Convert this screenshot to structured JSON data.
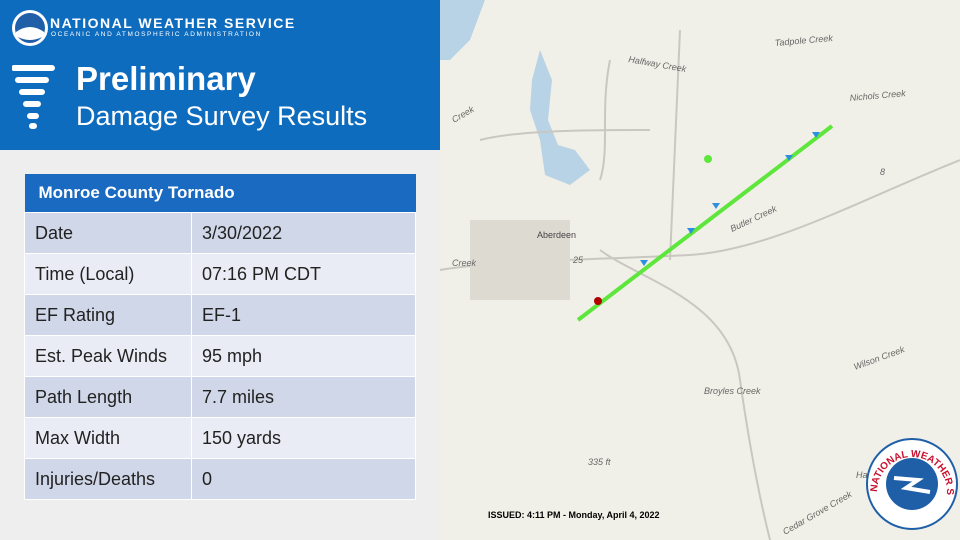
{
  "header": {
    "org": "NATIONAL WEATHER SERVICE",
    "org_sub": "OCEANIC AND ATMOSPHERIC ADMINISTRATION",
    "title": "Preliminary",
    "subtitle": "Damage Survey Results"
  },
  "table": {
    "title": "Monroe County Tornado",
    "rows": [
      [
        "Date",
        "3/30/2022"
      ],
      [
        "Time (Local)",
        "07:16 PM CDT"
      ],
      [
        "EF Rating",
        "EF-1"
      ],
      [
        "Est. Peak Winds",
        "95 mph"
      ],
      [
        "Path Length",
        "7.7 miles"
      ],
      [
        "Max Width",
        "150 yards"
      ],
      [
        "Injuries/Deaths",
        "0"
      ]
    ]
  },
  "map": {
    "labels": [
      "Tadpole Creek",
      "Halfway Creek",
      "Nichols Creek",
      "Creek",
      "Aberdeen",
      "Creek",
      "25",
      "8",
      "Butler Creek",
      "Wilson Creek",
      "Broyles Creek",
      "335 ft",
      "Cedar Grove Creek",
      "Ha"
    ]
  },
  "issued": "ISSUED: 4:11 PM - Monday, April 4, 2022",
  "logo_text": "NATIONAL WEATHER SERVICE"
}
